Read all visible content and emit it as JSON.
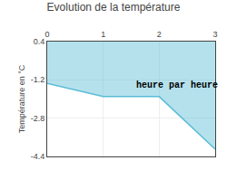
{
  "chart_data": {
    "type": "line",
    "title": "Evolution de la température",
    "ylabel": "Température en °C",
    "x": [
      0,
      1,
      2,
      3
    ],
    "values": [
      -1.35,
      -1.9,
      -1.9,
      -4.1
    ],
    "color": "#5bbcd6",
    "xlim": [
      0,
      3
    ],
    "ylim": [
      -4.4,
      0.4
    ],
    "xticks": [
      0,
      1,
      2,
      3
    ],
    "yticks": [
      0.4,
      -1.2,
      -2.8,
      -4.4
    ],
    "grid": true,
    "annotations": [
      {
        "text": "heure par heure",
        "x": 1.55,
        "y": -1.45
      }
    ]
  }
}
